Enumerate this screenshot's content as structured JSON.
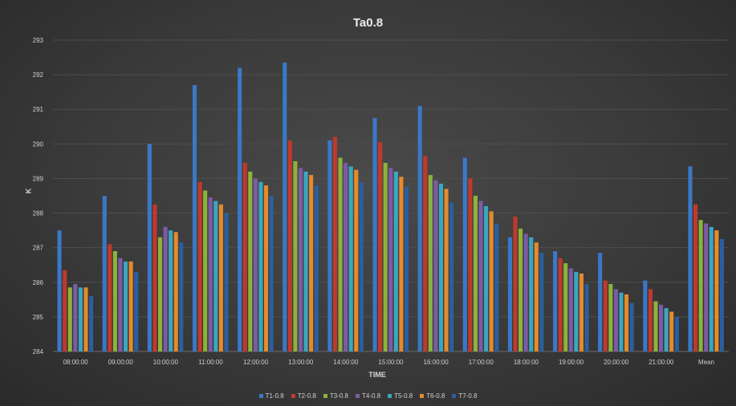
{
  "chart_data": {
    "type": "bar",
    "title": "Ta0.8",
    "xlabel": "TIME",
    "ylabel": "K",
    "ylim": [
      284,
      293
    ],
    "yticks": [
      284,
      285,
      286,
      287,
      288,
      289,
      290,
      291,
      292,
      293
    ],
    "grid": true,
    "legend_position": "bottom",
    "categories": [
      "08:00:00",
      "09:00:00",
      "10:00:00",
      "11:00:00",
      "12:00:00",
      "13:00:00",
      "14:00:00",
      "15:00:00",
      "16:00:00",
      "17:00:00",
      "18:00:00",
      "19:00:00",
      "20:00:00",
      "21:00:00",
      "Mean"
    ],
    "series": [
      {
        "name": "T1-0.8",
        "color": "#3a78c8",
        "values": [
          287.5,
          288.5,
          290.0,
          291.7,
          292.2,
          292.35,
          290.1,
          290.75,
          291.1,
          289.6,
          287.3,
          286.9,
          286.85,
          286.05,
          289.35
        ]
      },
      {
        "name": "T2-0.8",
        "color": "#c0392b",
        "values": [
          286.35,
          287.1,
          288.25,
          288.9,
          289.45,
          290.1,
          290.2,
          290.05,
          289.65,
          289.0,
          287.9,
          286.7,
          286.05,
          285.8,
          288.25
        ]
      },
      {
        "name": "T3-0.8",
        "color": "#8db33a",
        "values": [
          285.85,
          286.9,
          287.3,
          288.65,
          289.2,
          289.5,
          289.6,
          289.45,
          289.1,
          288.5,
          287.55,
          286.55,
          285.95,
          285.45,
          287.8
        ]
      },
      {
        "name": "T4-0.8",
        "color": "#7d5ba6",
        "values": [
          285.95,
          286.7,
          287.6,
          288.45,
          289.0,
          289.3,
          289.45,
          289.3,
          288.95,
          288.35,
          287.4,
          286.4,
          285.8,
          285.35,
          287.7
        ]
      },
      {
        "name": "T5-0.8",
        "color": "#3aa7c0",
        "values": [
          285.85,
          286.6,
          287.5,
          288.35,
          288.9,
          289.2,
          289.35,
          289.2,
          288.85,
          288.2,
          287.3,
          286.3,
          285.7,
          285.25,
          287.6
        ]
      },
      {
        "name": "T6-0.8",
        "color": "#e58a2c",
        "values": [
          285.85,
          286.6,
          287.45,
          288.25,
          288.8,
          289.1,
          289.25,
          289.05,
          288.7,
          288.05,
          287.15,
          286.25,
          285.65,
          285.15,
          287.5
        ]
      },
      {
        "name": "T7-0.8",
        "color": "#2a5fa0",
        "values": [
          285.6,
          286.3,
          287.15,
          288.0,
          288.5,
          288.8,
          288.9,
          288.75,
          288.3,
          287.7,
          286.85,
          285.95,
          285.4,
          285.0,
          287.25
        ]
      }
    ]
  }
}
